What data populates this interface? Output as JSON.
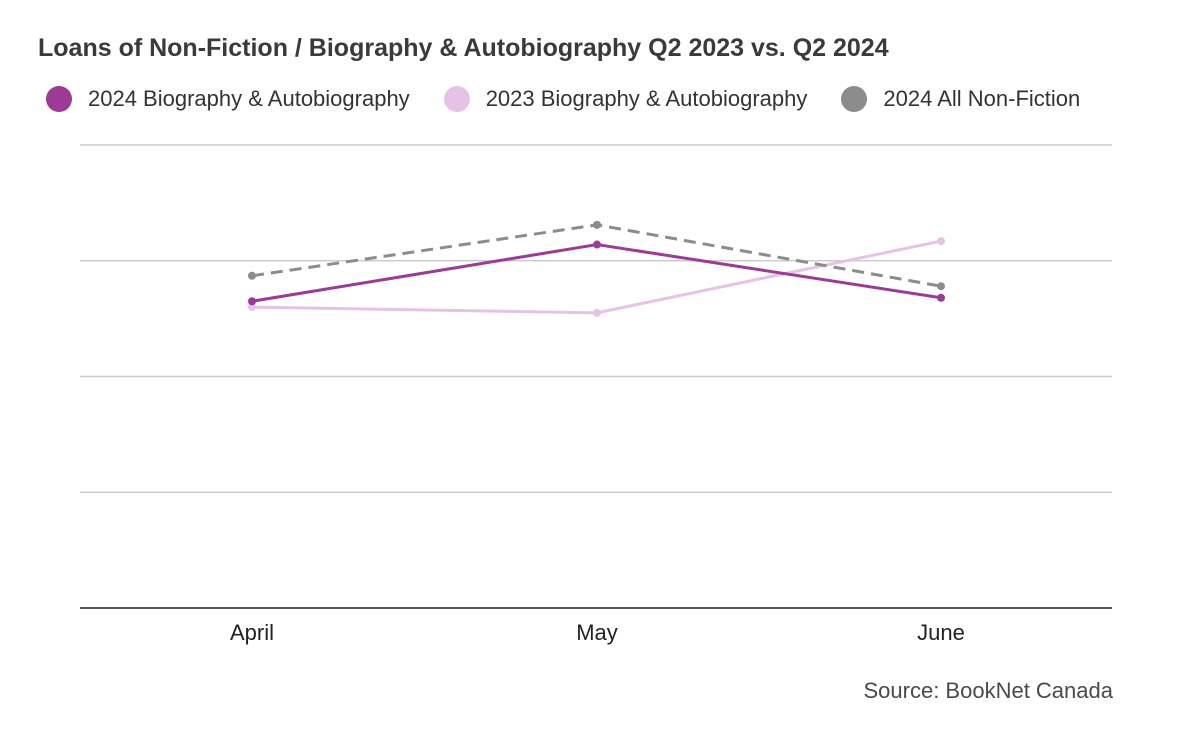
{
  "title": "Loans of Non-Fiction / Biography & Autobiography Q2 2023 vs. Q2 2024",
  "source": "Source: BookNet Canada",
  "chart_data": {
    "type": "line",
    "title": "Loans of Non-Fiction / Biography & Autobiography Q2 2023 vs. Q2 2024",
    "categories": [
      "April",
      "May",
      "June"
    ],
    "ylim": [
      0,
      4
    ],
    "grid": true,
    "legend_position": "top",
    "series": [
      {
        "name": "2024 Biography & Autobiography",
        "values": [
          2.65,
          3.14,
          2.68
        ],
        "color": "#9b3b96",
        "dashed": false
      },
      {
        "name": "2023 Biography & Autobiography",
        "values": [
          2.6,
          2.55,
          3.17
        ],
        "color": "#e6c3e6",
        "dashed": false
      },
      {
        "name": "2024 All Non-Fiction",
        "values": [
          2.87,
          3.31,
          2.78
        ],
        "color": "#8c8c8c",
        "dashed": true
      }
    ]
  }
}
